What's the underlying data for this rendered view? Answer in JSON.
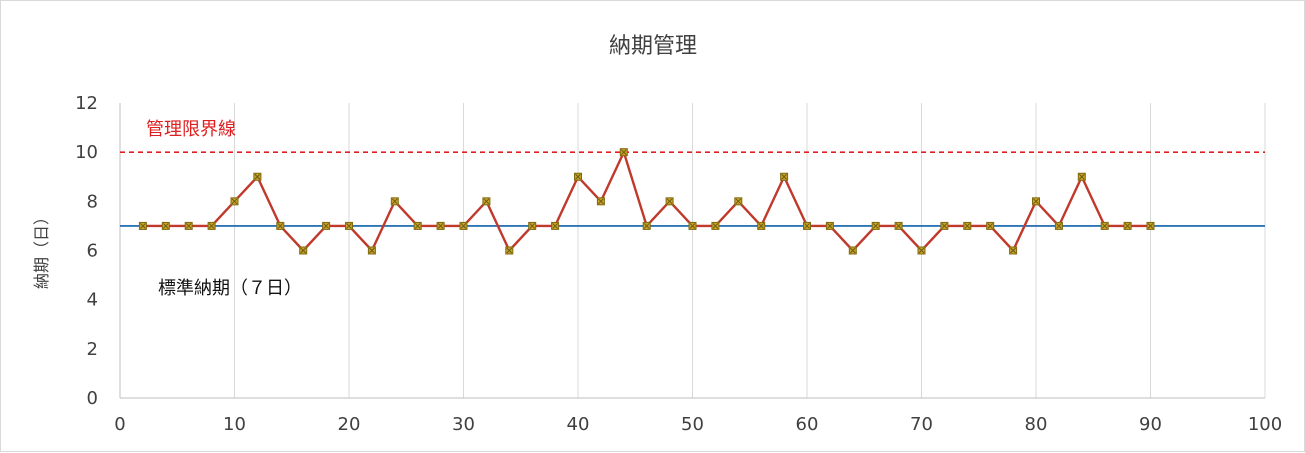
{
  "chart_data": {
    "type": "line",
    "title": "納期管理",
    "xlabel": "",
    "ylabel": "納期（日）",
    "xlim": [
      0,
      100
    ],
    "ylim": [
      0,
      12
    ],
    "x_ticks": [
      0,
      10,
      20,
      30,
      40,
      50,
      60,
      70,
      80,
      90,
      100
    ],
    "y_ticks": [
      0,
      2,
      4,
      6,
      8,
      10,
      12
    ],
    "grid": "vertical",
    "legend": "none",
    "series": [
      {
        "color": "#c0392b",
        "marker_color": "#c9a227",
        "x": [
          2,
          4,
          6,
          8,
          10,
          12,
          14,
          16,
          18,
          20,
          22,
          24,
          26,
          28,
          30,
          32,
          34,
          36,
          38,
          40,
          42,
          44,
          46,
          48,
          50,
          52,
          54,
          56,
          58,
          60,
          62,
          64,
          66,
          68,
          70,
          72,
          74,
          76,
          78,
          80,
          82,
          84,
          86,
          88,
          90
        ],
        "y": [
          7,
          7,
          7,
          7,
          8,
          9,
          7,
          6,
          7,
          7,
          6,
          8,
          7,
          7,
          7,
          8,
          6,
          7,
          7,
          9,
          8,
          10,
          7,
          8,
          7,
          7,
          8,
          7,
          9,
          7,
          7,
          6,
          7,
          7,
          6,
          7,
          7,
          7,
          6,
          8,
          7,
          9,
          7,
          7,
          7
        ]
      }
    ],
    "reference_lines": [
      {
        "label": "管理限界線",
        "value": 10,
        "x_range": [
          0,
          100
        ],
        "color": "#e02020",
        "style": "dashed"
      },
      {
        "label": "標準納期（７日）",
        "value": 7,
        "x_range": [
          0,
          100
        ],
        "color": "#2e75b6",
        "style": "solid"
      }
    ]
  }
}
